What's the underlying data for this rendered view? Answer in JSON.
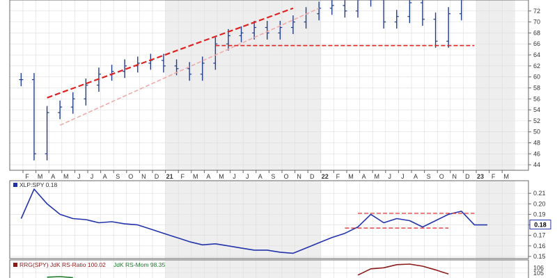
{
  "chart_data": [
    {
      "type": "bar",
      "panel": "price",
      "title": "",
      "xlabel": "",
      "ylabel": "",
      "ylim": [
        43,
        74
      ],
      "y_ticks": [
        "44",
        "46",
        "48",
        "50",
        "52",
        "54",
        "56",
        "58",
        "60",
        "62",
        "64",
        "66",
        "68",
        "70",
        "72"
      ],
      "x_ticks": [
        "F",
        "M",
        "A",
        "M",
        "J",
        "J",
        "A",
        "S",
        "O",
        "N",
        "D",
        "21",
        "F",
        "M",
        "A",
        "M",
        "J",
        "J",
        "A",
        "S",
        "O",
        "N",
        "D",
        "22",
        "F",
        "M",
        "A",
        "M",
        "J",
        "J",
        "A",
        "S",
        "O",
        "N",
        "D",
        "23",
        "F",
        "M"
      ],
      "x_ticks_bold": [
        "21",
        "22",
        "23"
      ],
      "grid": true,
      "points": [
        {
          "date": "2020-02",
          "price": 59.5
        },
        {
          "date": "2020-03",
          "price": 46.0
        },
        {
          "date": "2020-04",
          "price": 53.5
        },
        {
          "date": "2020-05",
          "price": 54.5
        },
        {
          "date": "2020-06",
          "price": 56.0
        },
        {
          "date": "2020-07",
          "price": 58.5
        },
        {
          "date": "2020-08",
          "price": 60.5
        },
        {
          "date": "2020-09",
          "price": 61.0
        },
        {
          "date": "2020-10",
          "price": 62.0
        },
        {
          "date": "2020-11",
          "price": 62.5
        },
        {
          "date": "2020-12",
          "price": 63.0
        },
        {
          "date": "2021-01",
          "price": 62.0
        },
        {
          "date": "2021-02",
          "price": 61.5
        },
        {
          "date": "2021-03",
          "price": 60.5
        },
        {
          "date": "2021-04",
          "price": 62.5
        },
        {
          "date": "2021-05",
          "price": 66.0
        },
        {
          "date": "2021-06",
          "price": 67.5
        },
        {
          "date": "2021-07",
          "price": 68.0
        },
        {
          "date": "2021-08",
          "price": 69.0
        },
        {
          "date": "2021-09",
          "price": 68.0
        },
        {
          "date": "2021-10",
          "price": 69.0
        },
        {
          "date": "2021-11",
          "price": 70.0
        },
        {
          "date": "2021-12",
          "price": 71.5
        },
        {
          "date": "2022-01",
          "price": 72.5
        },
        {
          "date": "2022-02",
          "price": 73.0
        },
        {
          "date": "2022-03",
          "price": 72.0
        },
        {
          "date": "2022-04",
          "price": 74.0
        },
        {
          "date": "2022-05",
          "price": 74.0
        },
        {
          "date": "2022-06",
          "price": 70.0
        },
        {
          "date": "2022-07",
          "price": 71.0
        },
        {
          "date": "2022-08",
          "price": 73.5
        },
        {
          "date": "2022-09",
          "price": 70.5
        },
        {
          "date": "2022-10",
          "price": 66.5
        },
        {
          "date": "2022-11",
          "price": 71.5
        },
        {
          "date": "2022-12",
          "price": 74.0
        }
      ],
      "trendlines": [
        {
          "from": {
            "date": "2020-04",
            "price": 56.2
          },
          "to": {
            "date": "2021-11",
            "price": 72.5
          },
          "color": "#dd2222",
          "dash": "dashed"
        },
        {
          "from": {
            "date": "2020-05",
            "price": 51.2
          },
          "to": {
            "date": "2022-01",
            "price": 72.5
          },
          "color": "#f0aaaa",
          "dash": "dashed"
        },
        {
          "from": {
            "date": "2021-05",
            "price": 65.7
          },
          "to": {
            "date": "2023-01",
            "price": 65.7
          },
          "color": "#dd2222",
          "dash": "dashed"
        }
      ]
    },
    {
      "type": "line",
      "panel": "ratio",
      "legend": [
        "XLP:SPY 0.18"
      ],
      "current_label": "0.18",
      "ylim": [
        0.148,
        0.222
      ],
      "y_ticks": [
        "0.15",
        "0.16",
        "0.17",
        "0.18",
        "0.19",
        "0.20",
        "0.21"
      ],
      "y_tick_values": [
        0.15,
        0.16,
        0.17,
        0.18,
        0.19,
        0.2,
        0.21
      ],
      "series": [
        {
          "color": "#2233aa",
          "points": [
            {
              "date": "2020-02",
              "value": 0.186
            },
            {
              "date": "2020-03",
              "value": 0.214
            },
            {
              "date": "2020-04",
              "value": 0.2
            },
            {
              "date": "2020-05",
              "value": 0.19
            },
            {
              "date": "2020-06",
              "value": 0.186
            },
            {
              "date": "2020-07",
              "value": 0.185
            },
            {
              "date": "2020-08",
              "value": 0.182
            },
            {
              "date": "2020-09",
              "value": 0.183
            },
            {
              "date": "2020-10",
              "value": 0.181
            },
            {
              "date": "2020-11",
              "value": 0.18
            },
            {
              "date": "2020-12",
              "value": 0.176
            },
            {
              "date": "2021-01",
              "value": 0.172
            },
            {
              "date": "2021-02",
              "value": 0.168
            },
            {
              "date": "2021-03",
              "value": 0.164
            },
            {
              "date": "2021-04",
              "value": 0.161
            },
            {
              "date": "2021-05",
              "value": 0.162
            },
            {
              "date": "2021-06",
              "value": 0.16
            },
            {
              "date": "2021-07",
              "value": 0.158
            },
            {
              "date": "2021-08",
              "value": 0.156
            },
            {
              "date": "2021-09",
              "value": 0.156
            },
            {
              "date": "2021-10",
              "value": 0.154
            },
            {
              "date": "2021-11",
              "value": 0.153
            },
            {
              "date": "2021-12",
              "value": 0.158
            },
            {
              "date": "2022-01",
              "value": 0.163
            },
            {
              "date": "2022-02",
              "value": 0.168
            },
            {
              "date": "2022-03",
              "value": 0.172
            },
            {
              "date": "2022-04",
              "value": 0.178
            },
            {
              "date": "2022-05",
              "value": 0.19
            },
            {
              "date": "2022-06",
              "value": 0.182
            },
            {
              "date": "2022-07",
              "value": 0.186
            },
            {
              "date": "2022-08",
              "value": 0.184
            },
            {
              "date": "2022-09",
              "value": 0.178
            },
            {
              "date": "2022-10",
              "value": 0.184
            },
            {
              "date": "2022-11",
              "value": 0.19
            },
            {
              "date": "2022-12",
              "value": 0.193
            },
            {
              "date": "2023-01",
              "value": 0.18
            },
            {
              "date": "2023-02",
              "value": 0.18
            }
          ]
        }
      ],
      "reference_lines": [
        {
          "from": {
            "date": "2022-04",
            "value": 0.191
          },
          "to": {
            "date": "2023-01",
            "value": 0.191
          },
          "color": "#dd2222"
        },
        {
          "from": {
            "date": "2022-03",
            "value": 0.177
          },
          "to": {
            "date": "2022-11",
            "value": 0.177
          },
          "color": "#dd2222"
        }
      ]
    },
    {
      "type": "line",
      "panel": "rrg",
      "legend": [
        "RRG(SPY)",
        "JdK RS-Ratio 100.02",
        "JdK RS-Mom 98.35"
      ],
      "legend_colors": [
        "#8b1a1a",
        "#8b1a1a",
        "#1a7a2a"
      ],
      "ylim": [
        103.5,
        107.5
      ],
      "y_ticks": [
        "106",
        "105"
      ],
      "y_tick_values": [
        106,
        105
      ],
      "series": [
        {
          "name": "JdK RS-Ratio",
          "color": "#8b1a1a",
          "points": [
            {
              "date": "2022-04",
              "value": 104.6
            },
            {
              "date": "2022-05",
              "value": 105.8
            },
            {
              "date": "2022-06",
              "value": 106.0
            },
            {
              "date": "2022-07",
              "value": 106.6
            },
            {
              "date": "2022-08",
              "value": 106.7
            },
            {
              "date": "2022-09",
              "value": 106.3
            },
            {
              "date": "2022-10",
              "value": 105.6
            },
            {
              "date": "2022-11",
              "value": 104.8
            }
          ]
        },
        {
          "name": "JdK RS-Mom",
          "color": "#1a7a2a",
          "points": [
            {
              "date": "2020-04",
              "value": 104.2
            },
            {
              "date": "2020-05",
              "value": 104.3
            },
            {
              "date": "2020-06",
              "value": 104.1
            }
          ]
        }
      ]
    }
  ]
}
